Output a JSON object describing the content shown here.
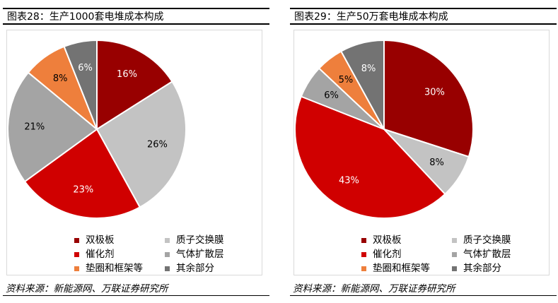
{
  "chart_data": [
    {
      "type": "pie",
      "title": "图表28：生产1000套电堆成本构成",
      "categories": [
        "双极板",
        "质子交换膜",
        "催化剂",
        "气体扩散层",
        "垫圈和框架等",
        "其余部分"
      ],
      "values": [
        16,
        26,
        23,
        21,
        8,
        6
      ],
      "labels": [
        "16%",
        "26%",
        "23%",
        "21%",
        "8%",
        "6%"
      ],
      "colors": [
        "#980000",
        "#c3c3c3",
        "#d00000",
        "#a4a4a4",
        "#ee7f3c",
        "#737373"
      ],
      "legend_position": "bottom",
      "source": "资料来源：新能源网、万联证券研究所"
    },
    {
      "type": "pie",
      "title": "图表29：生产50万套电堆成本构成",
      "categories": [
        "双极板",
        "质子交换膜",
        "催化剂",
        "气体扩散层",
        "垫圈和框架等",
        "其余部分"
      ],
      "values": [
        30,
        8,
        43,
        6,
        5,
        8
      ],
      "labels": [
        "30%",
        "8%",
        "43%",
        "6%",
        "5%",
        "8%"
      ],
      "colors": [
        "#980000",
        "#c3c3c3",
        "#d00000",
        "#a4a4a4",
        "#ee7f3c",
        "#737373"
      ],
      "legend_position": "bottom",
      "source": "资料来源：新能源网、万联证券研究所"
    }
  ]
}
